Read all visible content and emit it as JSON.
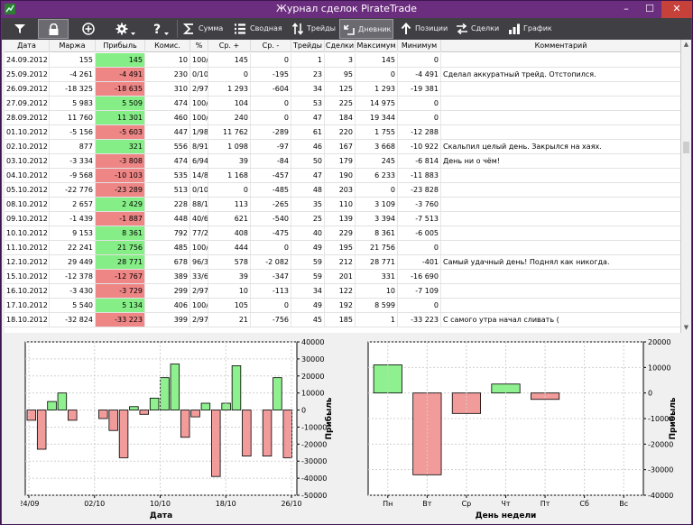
{
  "window": {
    "title": "Журнал сделок PirateTrade",
    "min": "–",
    "max": "☐",
    "close": "✕"
  },
  "toolbar": {
    "buttons": [
      {
        "id": "filter",
        "label": "",
        "icon": "filter-icon"
      },
      {
        "id": "lock",
        "label": "",
        "icon": "lock-icon"
      },
      {
        "id": "add",
        "label": "",
        "icon": "plus-circle-icon"
      },
      {
        "id": "settings",
        "label": "",
        "icon": "gear-icon"
      },
      {
        "id": "help",
        "label": "",
        "icon": "question-icon"
      },
      {
        "id": "sum",
        "label": "Сумма",
        "icon": "sigma-icon"
      },
      {
        "id": "summary",
        "label": "Сводная",
        "icon": "list-icon"
      },
      {
        "id": "trades",
        "label": "Трейды",
        "icon": "swap-icon"
      },
      {
        "id": "diary",
        "label": "Дневник",
        "icon": "diary-icon"
      },
      {
        "id": "positions",
        "label": "Позиции",
        "icon": "arrow-up-icon"
      },
      {
        "id": "deals",
        "label": "Сделки",
        "icon": "exchange-icon"
      },
      {
        "id": "graph",
        "label": "График",
        "icon": "chart-icon"
      }
    ],
    "active": "diary"
  },
  "table": {
    "headers": [
      "Дата",
      "Маржа",
      "Прибыль",
      "Комис.",
      "%",
      "Ср. +",
      "Ср. -",
      "Трейды",
      "Сделки",
      "Максимум",
      "Минимум",
      "Комментарий"
    ],
    "rows": [
      [
        "24.09.2012",
        "155",
        "145",
        "10",
        "100/0",
        "145",
        "0",
        "1",
        "3",
        "145",
        "0",
        ""
      ],
      [
        "25.09.2012",
        "-4 261",
        "-4 491",
        "230",
        "0/100",
        "0",
        "-195",
        "23",
        "95",
        "0",
        "-4 491",
        "Сделал аккуратный трейд. Отстопился."
      ],
      [
        "26.09.2012",
        "-18 325",
        "-18 635",
        "310",
        "2/97",
        "1 293",
        "-604",
        "34",
        "125",
        "1 293",
        "-19 381",
        ""
      ],
      [
        "27.09.2012",
        "5 983",
        "5 509",
        "474",
        "100/0",
        "104",
        "0",
        "53",
        "225",
        "14 975",
        "0",
        ""
      ],
      [
        "28.09.2012",
        "11 760",
        "11 301",
        "460",
        "100/0",
        "240",
        "0",
        "47",
        "184",
        "19 344",
        "0",
        ""
      ],
      [
        "01.10.2012",
        "-5 156",
        "-5 603",
        "447",
        "1/98",
        "11 762",
        "-289",
        "61",
        "220",
        "1 755",
        "-12 288",
        ""
      ],
      [
        "02.10.2012",
        "877",
        "321",
        "556",
        "8/91",
        "1 098",
        "-97",
        "46",
        "167",
        "3 668",
        "-10 922",
        "Скальпил целый день. Закрылся на хаях."
      ],
      [
        "03.10.2012",
        "-3 334",
        "-3 808",
        "474",
        "6/94",
        "39",
        "-84",
        "50",
        "179",
        "245",
        "-6 814",
        "День ни о чём!"
      ],
      [
        "04.10.2012",
        "-9 568",
        "-10 103",
        "535",
        "14/85",
        "1 168",
        "-457",
        "47",
        "190",
        "6 233",
        "-11 883",
        ""
      ],
      [
        "05.10.2012",
        "-22 776",
        "-23 289",
        "513",
        "0/100",
        "0",
        "-485",
        "48",
        "203",
        "0",
        "-23 828",
        ""
      ],
      [
        "08.10.2012",
        "2 657",
        "2 429",
        "228",
        "88/11",
        "113",
        "-265",
        "35",
        "110",
        "3 109",
        "-3 760",
        ""
      ],
      [
        "09.10.2012",
        "-1 439",
        "-1 887",
        "448",
        "40/60",
        "621",
        "-540",
        "25",
        "139",
        "3 394",
        "-7 513",
        ""
      ],
      [
        "10.10.2012",
        "9 153",
        "8 361",
        "792",
        "77/22",
        "408",
        "-475",
        "40",
        "229",
        "8 361",
        "-6 005",
        ""
      ],
      [
        "11.10.2012",
        "22 241",
        "21 756",
        "485",
        "100/0",
        "444",
        "0",
        "49",
        "195",
        "21 756",
        "0",
        ""
      ],
      [
        "12.10.2012",
        "29 449",
        "28 771",
        "678",
        "96/3",
        "578",
        "-2 082",
        "59",
        "212",
        "28 771",
        "-401",
        "Самый удачный день! Поднял как никогда."
      ],
      [
        "15.10.2012",
        "-12 378",
        "-12 767",
        "389",
        "33/66",
        "39",
        "-347",
        "59",
        "201",
        "331",
        "-16 690",
        ""
      ],
      [
        "16.10.2012",
        "-3 430",
        "-3 729",
        "299",
        "2/97",
        "10",
        "-113",
        "34",
        "122",
        "10",
        "-7 109",
        ""
      ],
      [
        "17.10.2012",
        "5 540",
        "5 134",
        "406",
        "100/0",
        "105",
        "0",
        "49",
        "192",
        "8 599",
        "0",
        ""
      ],
      [
        "18.10.2012",
        "-32 824",
        "-33 223",
        "399",
        "2/97",
        "21",
        "-756",
        "45",
        "185",
        "1",
        "-33 223",
        "С самого утра начал сливать ("
      ]
    ]
  },
  "scroll": {
    "up": "▲",
    "down": "▼"
  },
  "chart_data": [
    {
      "type": "bar",
      "title": "",
      "xlabel": "Дата",
      "ylabel": "Прибыль",
      "ylim": [
        -50000,
        40000
      ],
      "yticks": [
        "40000",
        "30000",
        "20000",
        "10000",
        "0",
        "-10000",
        "-20000",
        "-30000",
        "-40000",
        "-50000"
      ],
      "xticks": [
        "24/09",
        "02/10",
        "10/10",
        "18/10",
        "26/10"
      ],
      "values": [
        -6000,
        -23000,
        5000,
        10000,
        -6000,
        0,
        0,
        -5000,
        -12000,
        -28000,
        2000,
        -2500,
        7000,
        19000,
        27000,
        -16000,
        -4000,
        4000,
        -39000,
        4000,
        26000,
        -27000,
        0,
        -27000,
        19000,
        -28000
      ],
      "grid": true
    },
    {
      "type": "bar",
      "title": "",
      "xlabel": "День недели",
      "ylabel": "Прибыль",
      "ylim": [
        -40000,
        20000
      ],
      "yticks": [
        "20000",
        "10000",
        "0",
        "-10000",
        "-20000",
        "-30000",
        "-40000"
      ],
      "categories": [
        "Пн",
        "Вт",
        "Ср",
        "Чт",
        "Пт",
        "Сб",
        "Вс"
      ],
      "values": [
        11000,
        -32000,
        -8000,
        3500,
        -2500,
        0,
        0
      ],
      "grid": true
    }
  ]
}
